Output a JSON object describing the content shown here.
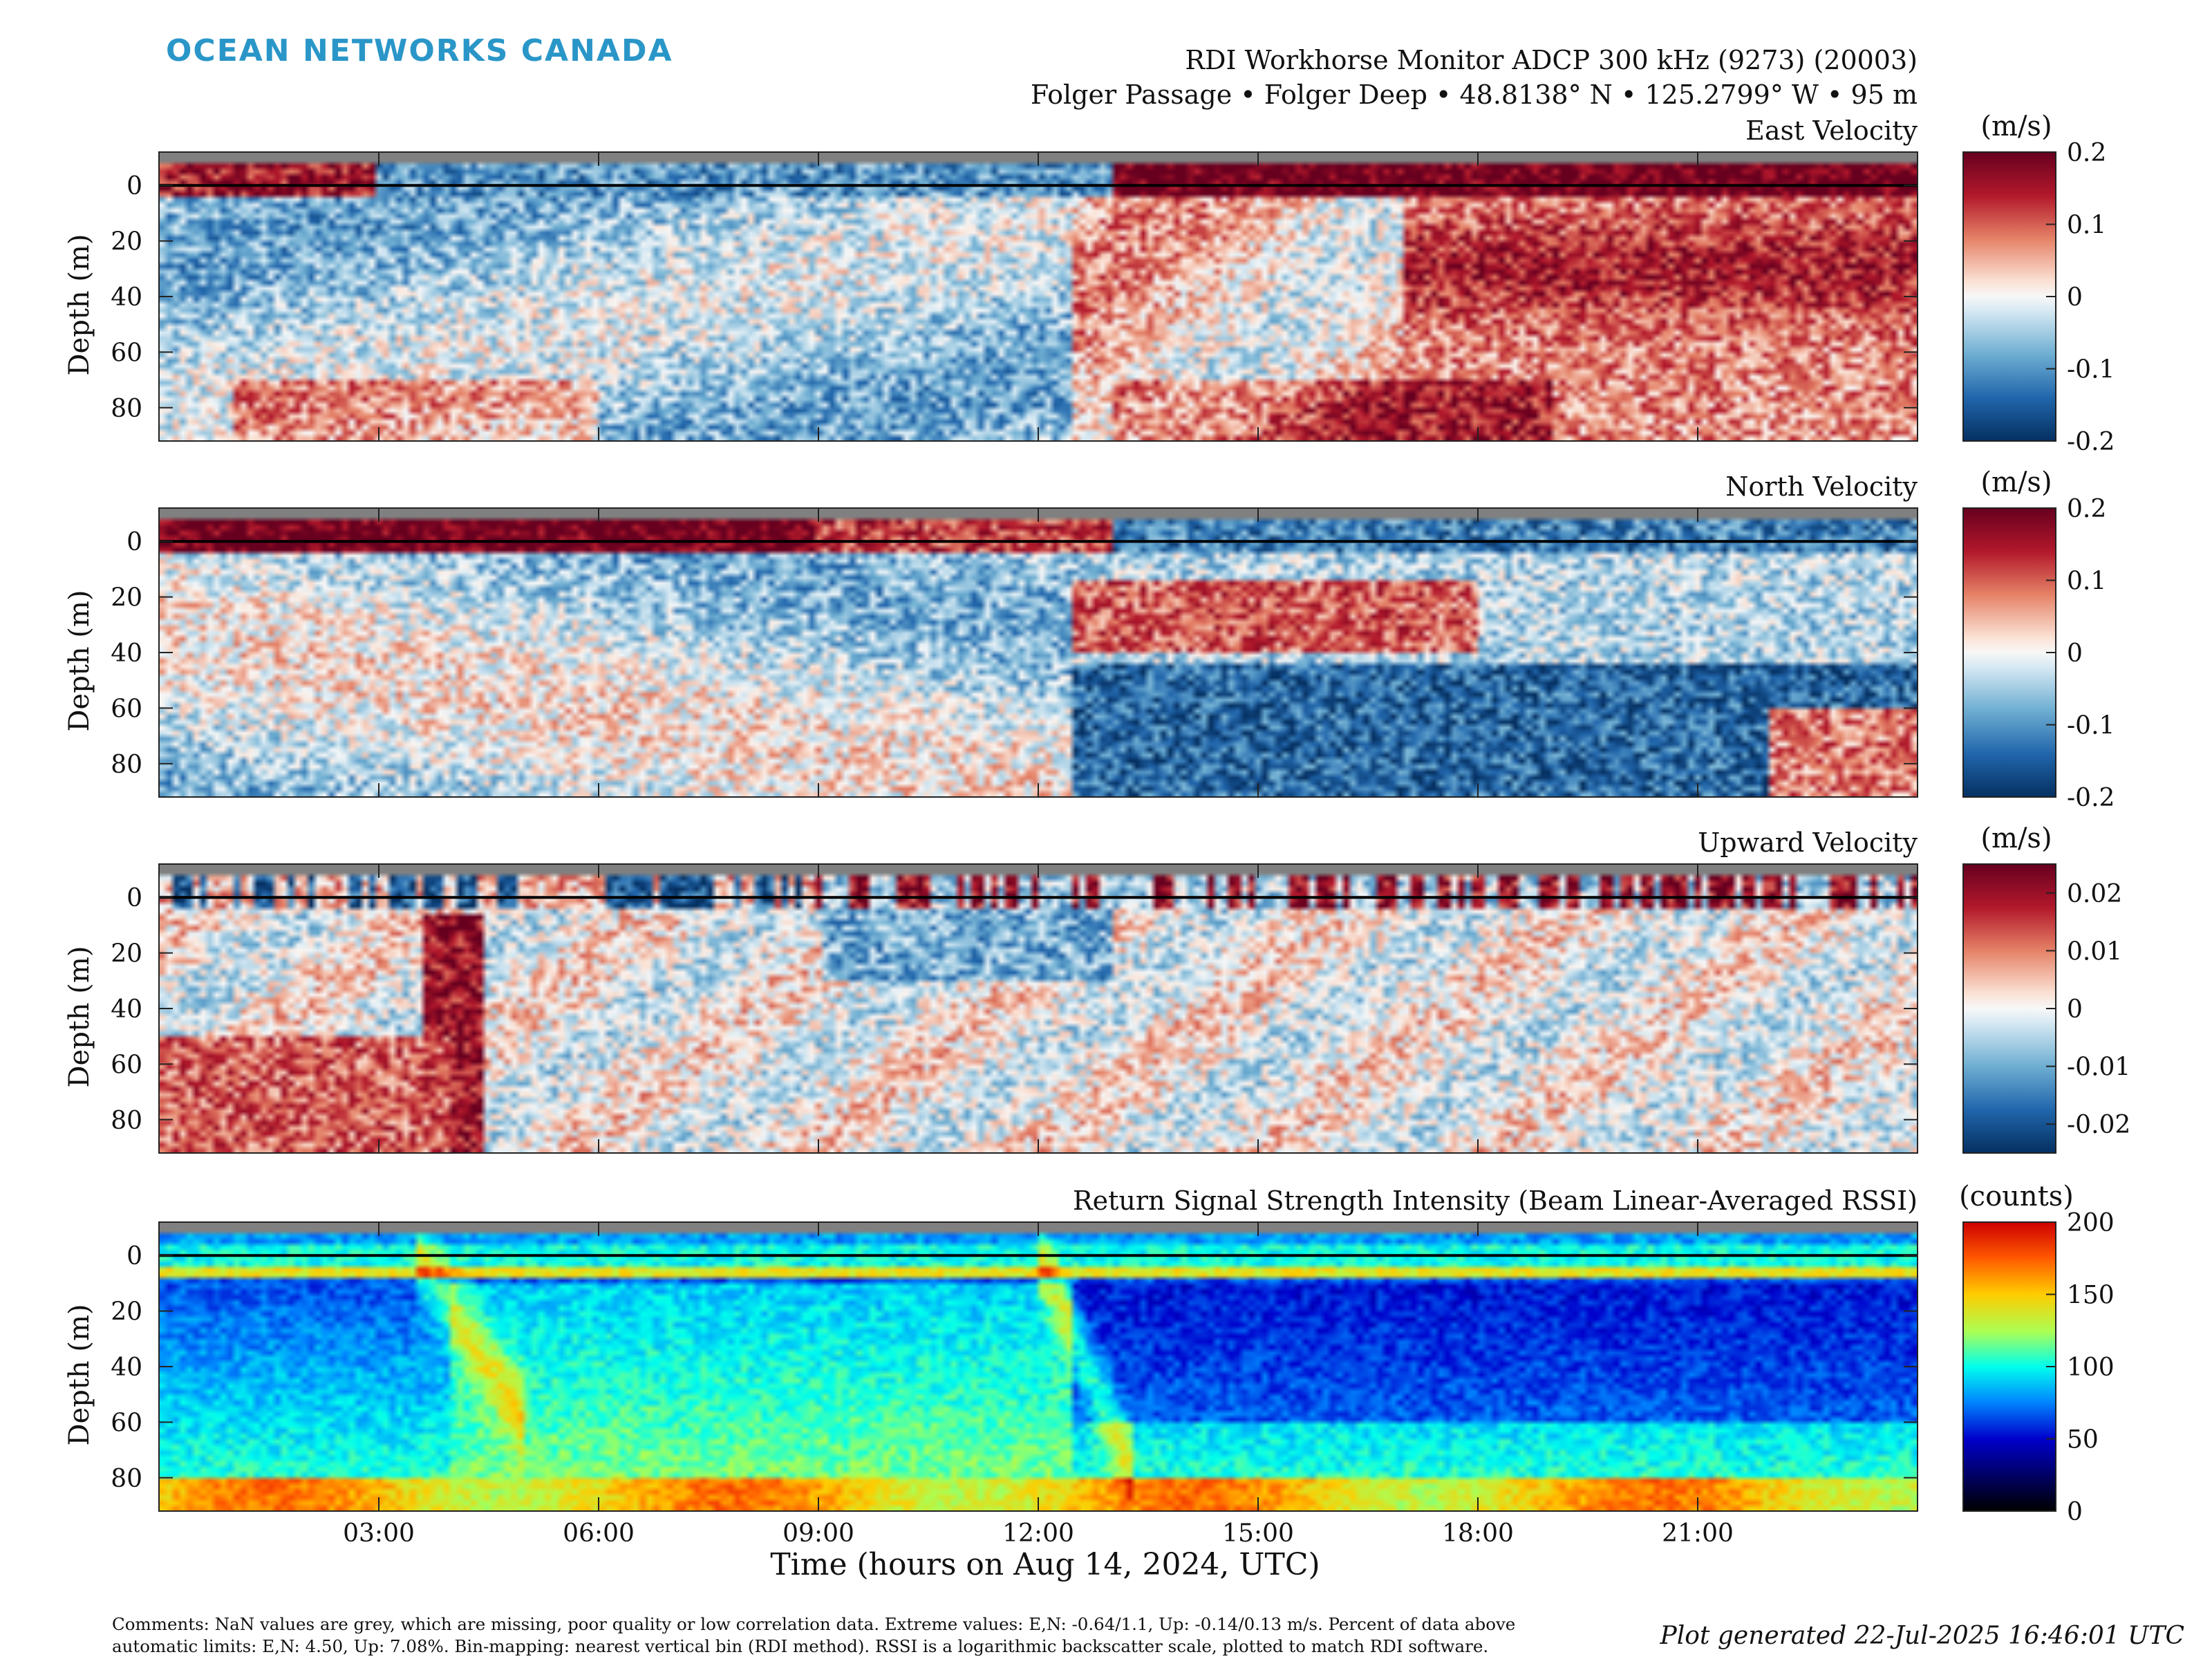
{
  "header": {
    "logo": "OCEAN NETWORKS CANADA",
    "title": "RDI Workhorse Monitor ADCP 300 kHz (9273) (20003)",
    "subtitle": "Folger Passage • Folger Deep • 48.8138° N • 125.2799° W • 95 m"
  },
  "chart_data": [
    {
      "type": "heatmap",
      "title": "East Velocity",
      "ylabel": "Depth (m)",
      "y_ticks": [
        "0",
        "20",
        "40",
        "60",
        "80"
      ],
      "ylim": [
        92,
        -12
      ],
      "xlim": [
        0,
        24
      ],
      "colorbar": {
        "label": "(m/s)",
        "ticks": [
          "0.2",
          "0.1",
          "0",
          "-0.1",
          "-0.2"
        ],
        "range": [
          -0.2,
          0.2
        ],
        "colormap": "blue-white-red"
      }
    },
    {
      "type": "heatmap",
      "title": "North Velocity",
      "ylabel": "Depth (m)",
      "y_ticks": [
        "0",
        "20",
        "40",
        "60",
        "80"
      ],
      "ylim": [
        92,
        -12
      ],
      "xlim": [
        0,
        24
      ],
      "colorbar": {
        "label": "(m/s)",
        "ticks": [
          "0.2",
          "0.1",
          "0",
          "-0.1",
          "-0.2"
        ],
        "range": [
          -0.2,
          0.2
        ],
        "colormap": "blue-white-red"
      }
    },
    {
      "type": "heatmap",
      "title": "Upward Velocity",
      "ylabel": "Depth (m)",
      "y_ticks": [
        "0",
        "20",
        "40",
        "60",
        "80"
      ],
      "ylim": [
        92,
        -12
      ],
      "xlim": [
        0,
        24
      ],
      "colorbar": {
        "label": "(m/s)",
        "ticks": [
          "0.02",
          "0.01",
          "0",
          "-0.01",
          "-0.02"
        ],
        "range": [
          -0.025,
          0.025
        ],
        "colormap": "blue-white-red"
      }
    },
    {
      "type": "heatmap",
      "title": "Return Signal Strength Intensity (Beam Linear-Averaged RSSI)",
      "ylabel": "Depth (m)",
      "y_ticks": [
        "0",
        "20",
        "40",
        "60",
        "80"
      ],
      "ylim": [
        92,
        -12
      ],
      "xlim": [
        0,
        24
      ],
      "colorbar": {
        "label": "(counts)",
        "ticks": [
          "200",
          "150",
          "100",
          "50",
          "0"
        ],
        "range": [
          0,
          200
        ],
        "colormap": "jet"
      }
    }
  ],
  "x_axis": {
    "label": "Time (hours on Aug 14, 2024, UTC)",
    "ticks": [
      "03:00",
      "06:00",
      "09:00",
      "12:00",
      "15:00",
      "18:00",
      "21:00"
    ],
    "tick_hours": [
      3,
      6,
      9,
      12,
      15,
      18,
      21
    ]
  },
  "footer": {
    "comments_line1": "Comments: NaN values are grey, which are missing, poor quality or low correlation data. Extreme values: E,N: -0.64/1.1, Up: -0.14/0.13 m/s. Percent of data above",
    "comments_line2": "automatic limits: E,N: 4.50, Up: 7.08%. Bin-mapping: nearest vertical bin (RDI method). RSSI is a logarithmic backscatter scale, plotted to match RDI software.",
    "generated": "Plot generated 22-Jul-2025 16:46:01 UTC"
  },
  "colors": {
    "nan_grey": "#808080",
    "logo": "#2a96c8"
  }
}
